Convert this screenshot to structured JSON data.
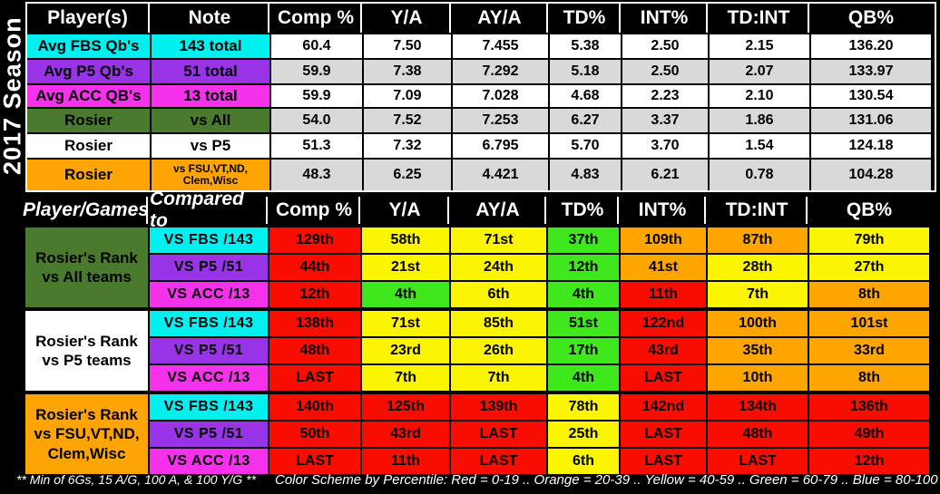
{
  "season_label": "2017 Season",
  "colors": {
    "white": "#FFFFFF",
    "gray": "#D9D9D9",
    "cyan": "#00EFEF",
    "purple": "#9933E8",
    "magenta": "#F531EC",
    "group_green": "#4A7A2D",
    "group_orange": "#FFA405",
    "rank_red": "#F90D00",
    "rank_orange": "#FFA500",
    "rank_yellow": "#FBF501",
    "rank_green": "#3FE71D",
    "header_bg": "#000000",
    "header_text": "#FFFFFF"
  },
  "chart_data": [
    {
      "type": "table",
      "columns": [
        "Player(s)",
        "Note",
        "Comp %",
        "Y/A",
        "AY/A",
        "TD%",
        "INT%",
        "TD:INT",
        "QB%"
      ],
      "row_colors": [
        "cyan",
        "purple",
        "magenta",
        "group_green",
        "white",
        "group_orange"
      ],
      "rows": [
        [
          "Avg FBS Qb's",
          "143 total",
          "60.4",
          "7.50",
          "7.455",
          "5.38",
          "2.50",
          "2.15",
          "136.20"
        ],
        [
          "Avg P5 Qb's",
          "51 total",
          "59.9",
          "7.38",
          "7.292",
          "5.18",
          "2.50",
          "2.07",
          "133.97"
        ],
        [
          "Avg ACC QB's",
          "13 total",
          "59.9",
          "7.09",
          "7.028",
          "4.68",
          "2.23",
          "2.10",
          "130.54"
        ],
        [
          "Rosier",
          "vs All",
          "54.0",
          "7.52",
          "7.253",
          "6.27",
          "3.37",
          "1.86",
          "131.06"
        ],
        [
          "Rosier",
          "vs P5",
          "51.3",
          "7.32",
          "6.795",
          "5.70",
          "3.70",
          "1.54",
          "124.18"
        ],
        [
          "Rosier",
          "vs FSU,VT,ND,\nClem,Wisc",
          "48.3",
          "6.25",
          "4.421",
          "4.83",
          "6.21",
          "0.78",
          "104.28"
        ]
      ]
    },
    {
      "type": "table",
      "columns": [
        "Player/Games",
        "Compared to",
        "Comp %",
        "Y/A",
        "AY/A",
        "TD%",
        "INT%",
        "TD:INT",
        "QB%"
      ],
      "groups": [
        {
          "label": "Rosier's Rank\nvs All teams",
          "label_color": "group_green",
          "rows": [
            {
              "compared_to": "VS FBS /143",
              "row_color": "cyan",
              "ranks": [
                "129th",
                "58th",
                "71st",
                "37th",
                "109th",
                "87th",
                "79th"
              ],
              "rank_colors": [
                "red",
                "yellow",
                "yellow",
                "green",
                "orange",
                "orange",
                "yellow"
              ]
            },
            {
              "compared_to": "VS P5 /51",
              "row_color": "purple",
              "ranks": [
                "44th",
                "21st",
                "24th",
                "12th",
                "41st",
                "28th",
                "27th"
              ],
              "rank_colors": [
                "red",
                "yellow",
                "yellow",
                "green",
                "orange",
                "yellow",
                "yellow"
              ]
            },
            {
              "compared_to": "VS ACC /13",
              "row_color": "magenta",
              "ranks": [
                "12th",
                "4th",
                "6th",
                "4th",
                "11th",
                "7th",
                "8th"
              ],
              "rank_colors": [
                "red",
                "green",
                "yellow",
                "green",
                "red",
                "yellow",
                "orange"
              ]
            }
          ]
        },
        {
          "label": "Rosier's Rank\nvs P5 teams",
          "label_color": "white",
          "rows": [
            {
              "compared_to": "VS FBS /143",
              "row_color": "cyan",
              "ranks": [
                "138th",
                "71st",
                "85th",
                "51st",
                "122nd",
                "100th",
                "101st"
              ],
              "rank_colors": [
                "red",
                "yellow",
                "yellow",
                "green",
                "red",
                "orange",
                "orange"
              ]
            },
            {
              "compared_to": "VS P5 /51",
              "row_color": "purple",
              "ranks": [
                "48th",
                "23rd",
                "26th",
                "17th",
                "43rd",
                "35th",
                "33rd"
              ],
              "rank_colors": [
                "red",
                "yellow",
                "yellow",
                "green",
                "red",
                "orange",
                "orange"
              ]
            },
            {
              "compared_to": "VS ACC /13",
              "row_color": "magenta",
              "ranks": [
                "LAST",
                "7th",
                "7th",
                "4th",
                "LAST",
                "10th",
                "8th"
              ],
              "rank_colors": [
                "red",
                "yellow",
                "yellow",
                "green",
                "red",
                "orange",
                "orange"
              ]
            }
          ]
        },
        {
          "label": "Rosier's Rank\nvs FSU,VT,ND,\nClem,Wisc",
          "label_color": "group_orange",
          "rows": [
            {
              "compared_to": "VS FBS /143",
              "row_color": "cyan",
              "ranks": [
                "140th",
                "125th",
                "139th",
                "78th",
                "142nd",
                "134th",
                "136th"
              ],
              "rank_colors": [
                "red",
                "red",
                "red",
                "yellow",
                "red",
                "red",
                "red"
              ]
            },
            {
              "compared_to": "VS P5 /51",
              "row_color": "purple",
              "ranks": [
                "50th",
                "43rd",
                "LAST",
                "25th",
                "LAST",
                "48th",
                "49th"
              ],
              "rank_colors": [
                "red",
                "red",
                "red",
                "yellow",
                "red",
                "red",
                "red"
              ]
            },
            {
              "compared_to": "VS ACC /13",
              "row_color": "magenta",
              "ranks": [
                "LAST",
                "11th",
                "LAST",
                "6th",
                "LAST",
                "LAST",
                "12th"
              ],
              "rank_colors": [
                "red",
                "red",
                "red",
                "yellow",
                "red",
                "red",
                "red"
              ]
            }
          ]
        }
      ]
    }
  ],
  "footer": {
    "min_note": "** Min of  6Gs, 15 A/G, 100 A, & 100 Y/G **",
    "color_scheme_note": "Color Scheme by Percentile: Red = 0-19 .. Orange = 20-39 .. Yellow = 40-59 .. Green = 60-79 .. Blue = 80-100"
  }
}
